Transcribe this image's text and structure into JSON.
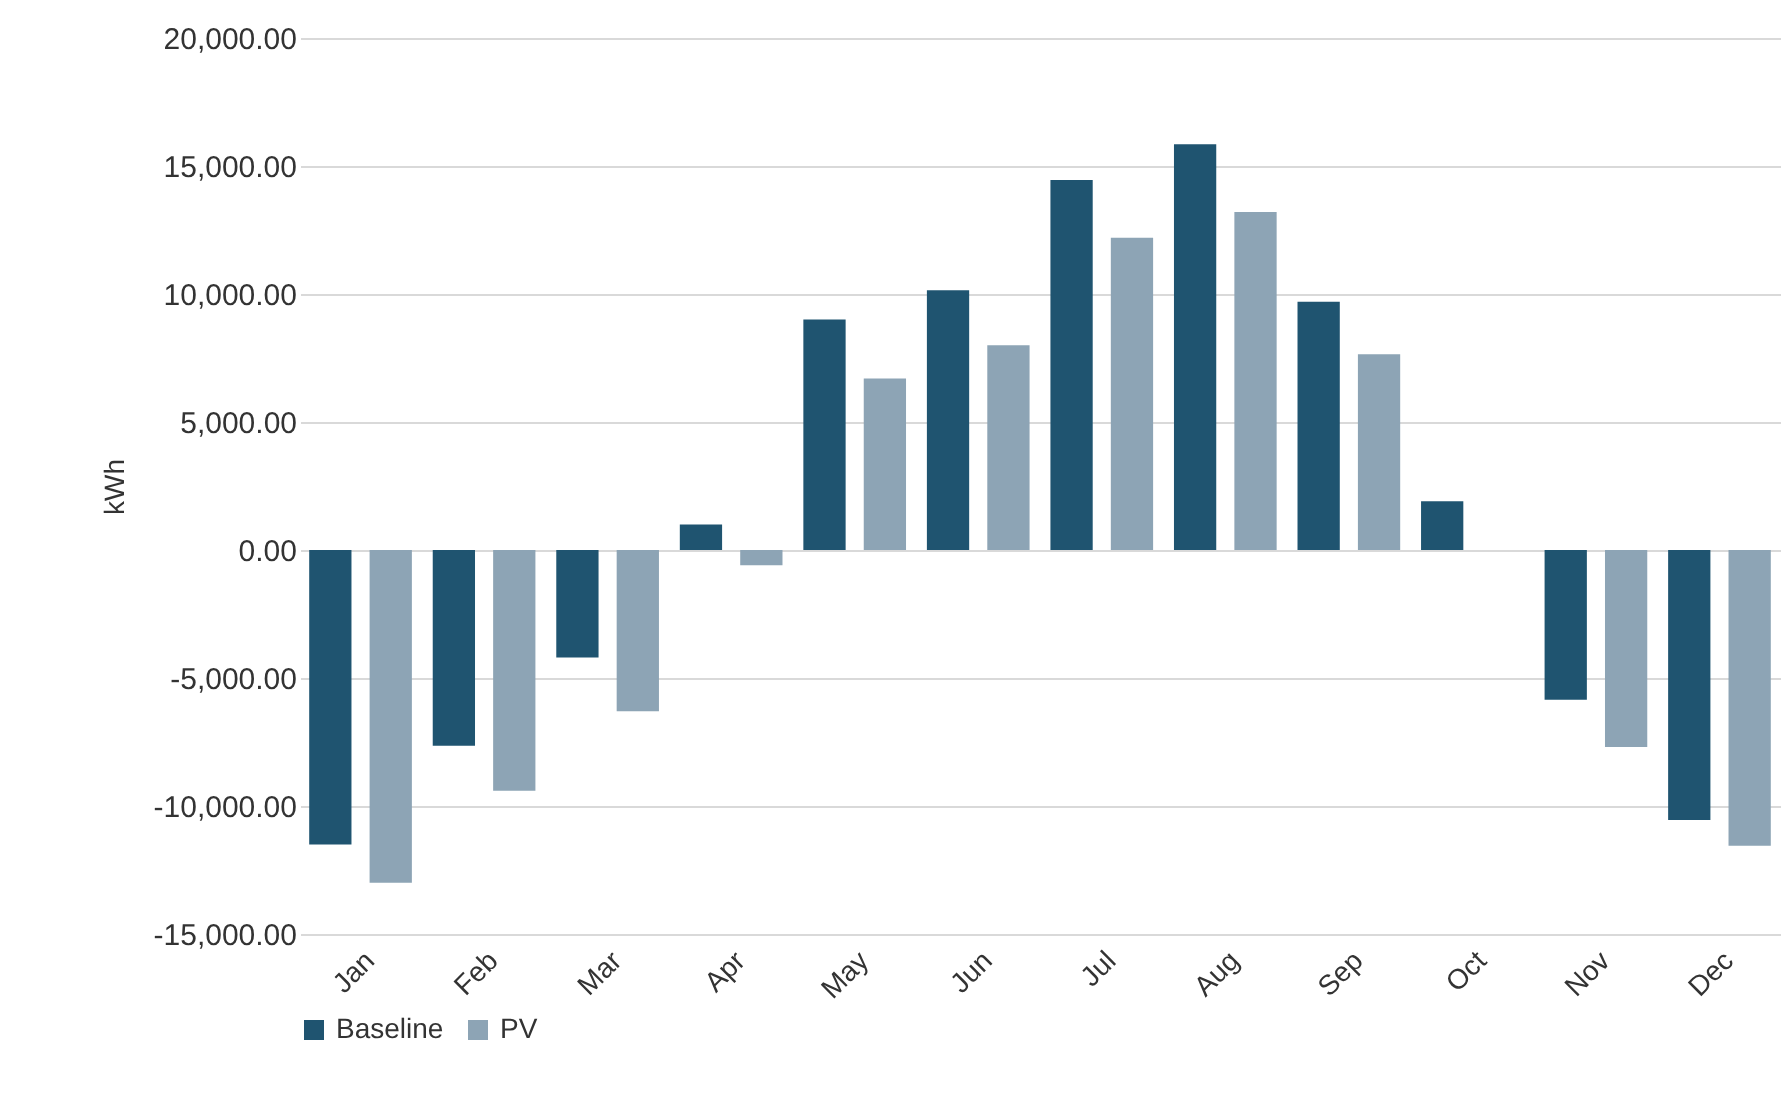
{
  "chart_data": {
    "type": "bar",
    "ylabel": "kWh",
    "categories": [
      "Jan",
      "Feb",
      "Mar",
      "Apr",
      "May",
      "Jun",
      "Jul",
      "Aug",
      "Sep",
      "Oct",
      "Nov",
      "Dec"
    ],
    "series": [
      {
        "name": "Baseline",
        "color": "#1f5470",
        "values": [
          -11500,
          -7650,
          -4200,
          1000,
          9000,
          10150,
          14450,
          15850,
          9700,
          1900,
          -5850,
          -10550
        ]
      },
      {
        "name": "PV",
        "color": "#8da4b5",
        "values": [
          -13000,
          -9400,
          -6300,
          -600,
          6700,
          8000,
          12200,
          13200,
          7650,
          0,
          -7700,
          -11550
        ]
      }
    ],
    "ylim": [
      -15000,
      20000
    ],
    "yticks": [
      {
        "value": -15000,
        "label": "-15,000.00"
      },
      {
        "value": -10000,
        "label": "-10,000.00"
      },
      {
        "value": -5000,
        "label": "-5,000.00"
      },
      {
        "value": 0,
        "label": "0.00"
      },
      {
        "value": 5000,
        "label": "5,000.00"
      },
      {
        "value": 10000,
        "label": "10,000.00"
      },
      {
        "value": 15000,
        "label": "15,000.00"
      },
      {
        "value": 20000,
        "label": "20,000.00"
      }
    ],
    "grid": "y",
    "legend": "bottom"
  }
}
